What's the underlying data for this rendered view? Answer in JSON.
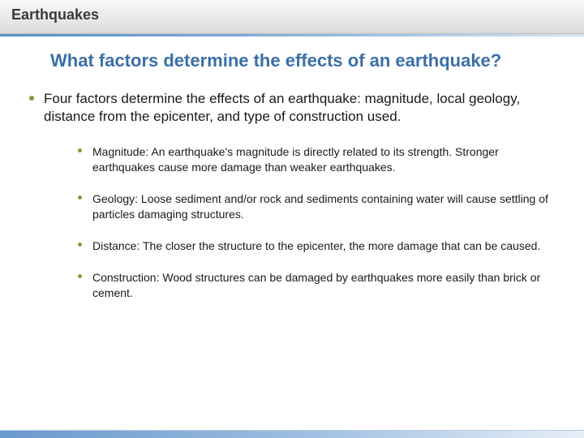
{
  "colors": {
    "heading_blue": "#3a6fa8",
    "bullet_green": "#7a9e3f",
    "body_text": "#1a1a1a",
    "header_text": "#3a3a3a",
    "blue_bar_start": "#5a8fc4",
    "blue_bar_end": "#d6e4f2",
    "footer_start": "#6a99cc",
    "footer_end": "#e6eef7",
    "background": "#ffffff"
  },
  "typography": {
    "header_fontsize": 18,
    "heading_fontsize": 22,
    "lvl1_fontsize": 17,
    "lvl2_fontsize": 14,
    "font_family": "Verdana"
  },
  "header": {
    "title": "Earthquakes"
  },
  "main": {
    "heading": "What factors determine the effects of an earthquake?",
    "lvl1": "Four factors determine the effects of an earthquake: magnitude, local geology, distance from the epicenter, and type of construction used.",
    "lvl2": [
      "Magnitude: An earthquake's magnitude is directly related to its strength. Stronger earthquakes cause more damage than weaker earthquakes.",
      "Geology: Loose sediment and/or rock and sediments containing water will cause settling of particles damaging structures.",
      "Distance: The closer the structure to the epicenter, the more damage that can be caused.",
      "Construction: Wood structures can be damaged by earthquakes more easily than brick or cement."
    ]
  }
}
